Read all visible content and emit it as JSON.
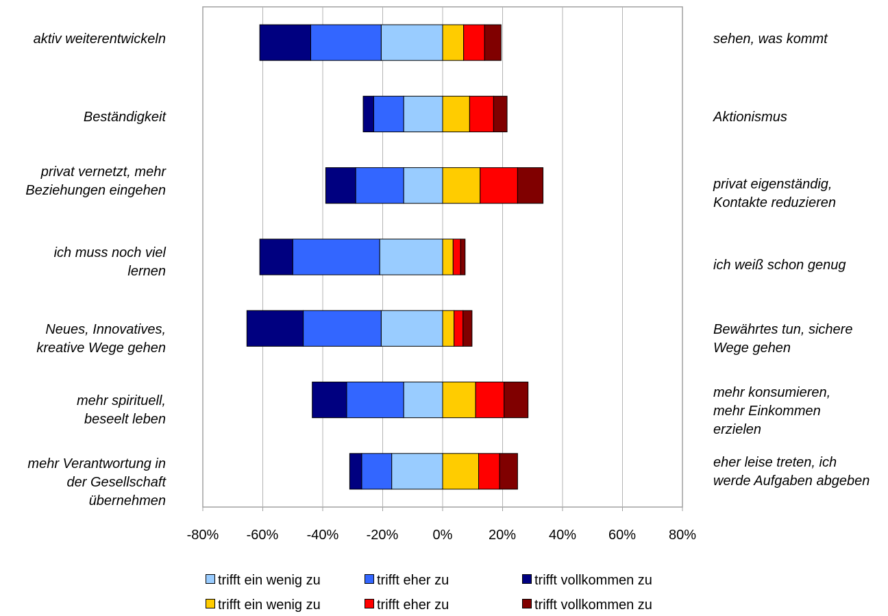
{
  "chart_data": {
    "type": "bar",
    "orientation": "horizontal-diverging-stacked",
    "x_ticks": [
      "-80%",
      "-60%",
      "-40%",
      "-20%",
      "0%",
      "20%",
      "40%",
      "60%",
      "80%"
    ],
    "xlim": [
      -80,
      80
    ],
    "grid": "vertical",
    "legend_placement": "bottom",
    "rows": [
      {
        "left_label": "aktiv weiterentwickeln",
        "right_label": "sehen, was kommt",
        "left": {
          "wenig": 20.5,
          "eher": 23.5,
          "voll": 17.0
        },
        "right": {
          "wenig": 7.0,
          "eher": 7.0,
          "voll": 5.5
        }
      },
      {
        "left_label": "Beständigkeit",
        "right_label": "Aktionismus",
        "left": {
          "wenig": 13.0,
          "eher": 10.0,
          "voll": 3.5
        },
        "right": {
          "wenig": 9.0,
          "eher": 8.0,
          "voll": 4.5
        }
      },
      {
        "left_label": "privat vernetzt, mehr Beziehungen eingehen",
        "right_label": "privat eigenständig, Kontakte reduzieren",
        "left": {
          "wenig": 13.0,
          "eher": 16.0,
          "voll": 10.0
        },
        "right": {
          "wenig": 12.5,
          "eher": 12.5,
          "voll": 8.5
        }
      },
      {
        "left_label": "ich muss noch viel lernen",
        "right_label": "ich weiß schon genug",
        "left": {
          "wenig": 21.0,
          "eher": 29.0,
          "voll": 11.0
        },
        "right": {
          "wenig": 3.5,
          "eher": 2.5,
          "voll": 1.5
        }
      },
      {
        "left_label": "Neues, Innovatives, kreative Wege gehen",
        "right_label": "Bewährtes tun, sichere Wege gehen",
        "left": {
          "wenig": 20.5,
          "eher": 26.0,
          "voll": 18.8
        },
        "right": {
          "wenig": 3.8,
          "eher": 3.0,
          "voll": 3.0
        }
      },
      {
        "left_label": "mehr spirituell, beseelt leben",
        "right_label": "mehr konsumieren, mehr Einkommen erzielen",
        "left": {
          "wenig": 13.0,
          "eher": 19.0,
          "voll": 11.5
        },
        "right": {
          "wenig": 11.0,
          "eher": 9.5,
          "voll": 8.0
        }
      },
      {
        "left_label": "mehr Verantwortung in der Gesellschaft übernehmen",
        "right_label": "eher leise treten, ich werde Aufgaben abgeben",
        "left": {
          "wenig": 17.0,
          "eher": 10.0,
          "voll": 4.0
        },
        "right": {
          "wenig": 12.0,
          "eher": 7.0,
          "voll": 6.0
        }
      }
    ],
    "series": [
      {
        "key": "left.wenig",
        "name": "trifft ein wenig zu",
        "color": "#99ccff"
      },
      {
        "key": "left.eher",
        "name": "trifft eher zu",
        "color": "#3366ff"
      },
      {
        "key": "left.voll",
        "name": "trifft vollkommen zu",
        "color": "#000080"
      },
      {
        "key": "right.wenig",
        "name": "trifft ein wenig zu",
        "color": "#ffcc00"
      },
      {
        "key": "right.eher",
        "name": "trifft eher zu",
        "color": "#ff0000"
      },
      {
        "key": "right.voll",
        "name": "trifft vollkommen zu",
        "color": "#800000"
      }
    ]
  }
}
